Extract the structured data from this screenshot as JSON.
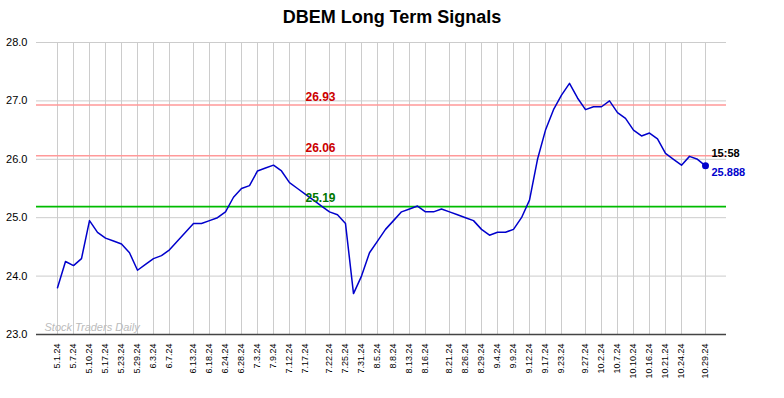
{
  "chart_data": {
    "type": "line",
    "title": "DBEM Long Term Signals",
    "categories": [
      "5.1.24",
      null,
      "5.7.24",
      null,
      "5.10.24",
      null,
      "5.17.24",
      null,
      "5.23.24",
      null,
      "5.29.24",
      null,
      "6.3.24",
      null,
      "6.7.24",
      null,
      null,
      "6.13.24",
      null,
      "6.18.24",
      null,
      "6.24.24",
      null,
      "6.28.24",
      null,
      "7.3.24",
      null,
      "7.9.24",
      null,
      "7.12.24",
      null,
      "7.17.24",
      null,
      null,
      "7.22.24",
      null,
      "7.25.24",
      null,
      "7.31.24",
      null,
      "8.5.24",
      null,
      "8.8.24",
      null,
      "8.13.24",
      null,
      "8.16.24",
      null,
      null,
      "8.21.24",
      null,
      "8.26.24",
      null,
      "8.29.24",
      null,
      "9.4.24",
      null,
      "9.9.24",
      null,
      "9.12.24",
      null,
      "9.17.24",
      null,
      "9.23.24",
      null,
      null,
      "9.27.24",
      null,
      "10.2.24",
      null,
      "10.7.24",
      null,
      "10.10.24",
      null,
      "10.16.24",
      null,
      "10.21.24",
      null,
      "10.24.24",
      null,
      null,
      "10.29.24"
    ],
    "values": [
      23.8,
      24.25,
      24.18,
      24.3,
      24.95,
      24.75,
      24.65,
      24.6,
      24.55,
      24.4,
      24.1,
      24.2,
      24.3,
      24.35,
      24.45,
      24.6,
      24.75,
      24.9,
      24.9,
      24.95,
      25.0,
      25.1,
      25.35,
      25.5,
      25.55,
      25.8,
      25.85,
      25.9,
      25.8,
      25.6,
      25.5,
      25.4,
      25.3,
      25.2,
      25.1,
      25.05,
      24.9,
      23.7,
      24.0,
      24.4,
      24.6,
      24.8,
      24.95,
      25.1,
      25.15,
      25.2,
      25.1,
      25.1,
      25.15,
      25.1,
      25.05,
      25.0,
      24.95,
      24.8,
      24.7,
      24.75,
      24.75,
      24.8,
      25.0,
      25.3,
      26.0,
      26.5,
      26.85,
      27.1,
      27.3,
      27.05,
      26.85,
      26.9,
      26.9,
      27.0,
      26.8,
      26.7,
      26.5,
      26.4,
      26.45,
      26.35,
      26.1,
      26.0,
      25.9,
      26.05,
      26.0,
      25.888
    ],
    "color": "#0000cc",
    "ylim": [
      23,
      28
    ],
    "yticks": [
      23,
      24,
      25,
      26,
      27,
      28
    ],
    "grid": true,
    "hlines": [
      {
        "value": 26.06,
        "color": "#ff9999",
        "label": "26.06",
        "label_color": "#cc0000"
      },
      {
        "value": 26.93,
        "color": "#ff9999",
        "label": "26.93",
        "label_color": "#cc0000"
      },
      {
        "value": 25.19,
        "color": "#00bb00",
        "label": "25.19",
        "label_color": "#007700"
      }
    ],
    "last_point": {
      "label": "15:58",
      "value_label": "25.888",
      "color": "#0000cc"
    },
    "watermark": {
      "text": "Stock Traders Daily",
      "color": "#bbbbbb"
    }
  }
}
